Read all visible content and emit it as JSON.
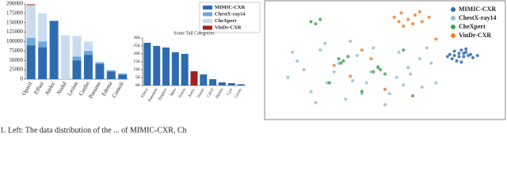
{
  "chart_data": [
    {
      "type": "bar",
      "stacked": true,
      "categories": [
        "Opacit",
        "Effusi",
        "Atelec",
        "Nodul",
        "Lesion",
        "Cardio",
        "Pneumo",
        "Edema",
        "Consoli"
      ],
      "series": [
        {
          "name": "MIMIC-CXR",
          "color": "#2e6cb0",
          "values": [
            90000,
            85000,
            155000,
            0,
            50000,
            65000,
            40000,
            20000,
            12000
          ]
        },
        {
          "name": "ChestX-ray14",
          "color": "#6fa8dc",
          "values": [
            20000,
            15000,
            0,
            0,
            10000,
            10000,
            5000,
            3000,
            3000
          ]
        },
        {
          "name": "CheXpert",
          "color": "#c9dcef",
          "values": [
            87000,
            75000,
            0,
            117000,
            55000,
            25000,
            0,
            2000,
            0
          ]
        },
        {
          "name": "VinDr-CXR",
          "color": "#a32020",
          "values": [
            2000,
            0,
            0,
            0,
            0,
            0,
            0,
            0,
            0
          ]
        }
      ],
      "ylim": [
        0,
        200000
      ],
      "yticks": [
        0,
        25000,
        50000,
        75000,
        100000,
        125000,
        150000,
        175000,
        200000
      ],
      "legend": "upper right"
    },
    {
      "type": "bar",
      "stacked": true,
      "title": "Some Tail Categories",
      "categories": [
        "Fibros",
        "Pneumon",
        "Emphys",
        "Mass",
        "Fractu",
        "Aortic",
        "Tortuo",
        "Calcif",
        "Hernia",
        "Cyst",
        "Cavity"
      ],
      "series": [
        {
          "name": "MIMIC-CXR",
          "color": "#2e6cb0",
          "values": [
            27000,
            25000,
            24000,
            21000,
            20000,
            0,
            7000,
            4000,
            2000,
            1500,
            800
          ]
        },
        {
          "name": "VinDr-CXR",
          "color": "#a32020",
          "values": [
            0,
            0,
            0,
            0,
            0,
            9000,
            0,
            0,
            0,
            0,
            0
          ]
        }
      ],
      "ylim": [
        0,
        30000
      ],
      "yticks": [
        {
          "value": 0,
          "label": "0K"
        },
        {
          "value": 5000,
          "label": "5K"
        },
        {
          "value": 10000,
          "label": "10K"
        },
        {
          "value": 15000,
          "label": "15K"
        },
        {
          "value": 20000,
          "label": "20K"
        },
        {
          "value": 25000,
          "label": "25K"
        },
        {
          "value": 30000,
          "label": "30K"
        }
      ]
    },
    {
      "type": "scatter",
      "xlim": [
        0,
        100
      ],
      "ylim": [
        0,
        100
      ],
      "legend": "upper right",
      "series": [
        {
          "name": "MIMIC-CXR",
          "color": "#2e6cb0",
          "x": [
            78,
            80,
            82,
            84,
            86,
            79,
            81,
            83,
            85,
            88,
            80,
            84,
            82,
            87,
            83,
            90,
            77,
            85
          ],
          "y": [
            56,
            59,
            54,
            57,
            55,
            52,
            50,
            60,
            58,
            53,
            55,
            54,
            57,
            56,
            49,
            55,
            54,
            61
          ]
        },
        {
          "name": "ChestX-ray14",
          "color": "#8fbfe0",
          "x": [
            8,
            12,
            18,
            22,
            28,
            33,
            38,
            42,
            47,
            52,
            56,
            61,
            66,
            70,
            15,
            25,
            35,
            45,
            55,
            65,
            20,
            30,
            40,
            50,
            60,
            72,
            10,
            24,
            44,
            58,
            68,
            36
          ],
          "y": [
            35,
            50,
            22,
            60,
            40,
            15,
            55,
            30,
            45,
            20,
            58,
            38,
            26,
            48,
            42,
            30,
            68,
            62,
            35,
            52,
            12,
            48,
            20,
            10,
            44,
            30,
            58,
            66,
            40,
            28,
            62,
            32
          ]
        },
        {
          "name": "CheXpert",
          "color": "#3fa34d",
          "x": [
            18,
            20,
            22,
            30,
            32,
            34,
            31,
            45,
            48,
            50,
            47,
            26,
            58,
            40,
            62
          ],
          "y": [
            86,
            84,
            88,
            52,
            50,
            54,
            48,
            40,
            42,
            38,
            44,
            30,
            60,
            22,
            18
          ]
        },
        {
          "name": "VinDr-CXR",
          "color": "#f07f2e",
          "x": [
            54,
            57,
            60,
            63,
            66,
            69,
            58,
            62,
            65,
            56,
            40,
            35,
            72,
            28,
            50,
            44
          ],
          "y": [
            90,
            94,
            88,
            92,
            86,
            90,
            82,
            84,
            95,
            86,
            60,
            36,
            70,
            46,
            24,
            52
          ]
        }
      ]
    }
  ],
  "caption": "1. Left: The data distribution of the ... of MIMIC-CXR, Ch"
}
